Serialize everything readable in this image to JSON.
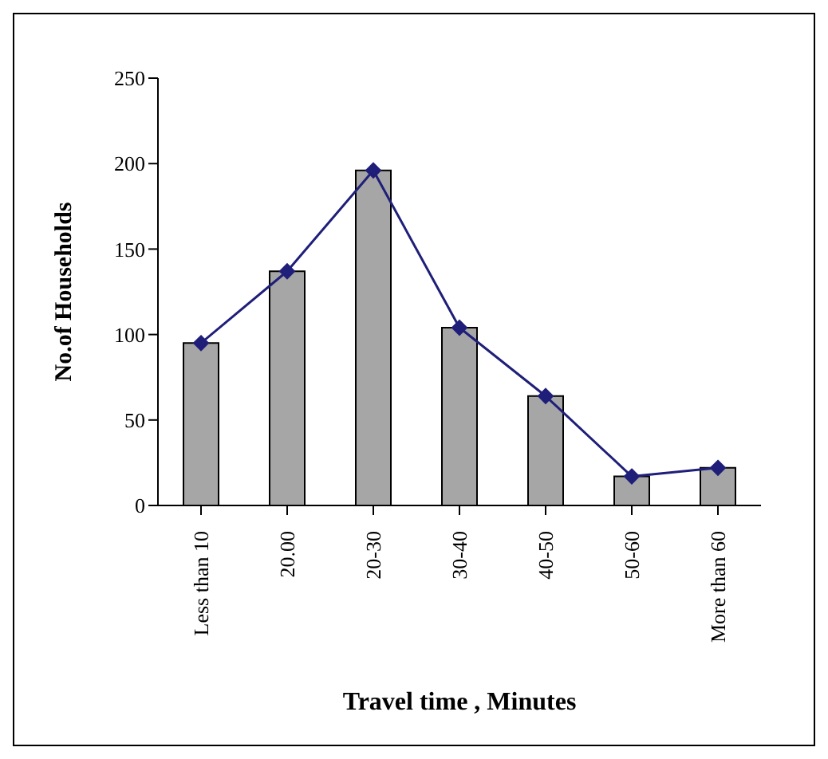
{
  "chart_data": {
    "type": "bar",
    "xlabel": "Travel time , Minutes",
    "ylabel": "No.of Households",
    "categories": [
      "Less than 10",
      "20.00",
      "20-30",
      "30-40",
      "40-50",
      "50-60",
      "More than 60"
    ],
    "series": [
      {
        "color": "#a6a6a6",
        "values": [
          95,
          137,
          196,
          104,
          64,
          17,
          22
        ]
      },
      {
        "type": "line",
        "color": "#1f1f7a",
        "values": [
          95,
          137,
          196,
          104,
          64,
          17,
          22
        ]
      }
    ],
    "ylim": [
      0,
      250
    ],
    "yticks": [
      0,
      50,
      100,
      150,
      200,
      250
    ],
    "grid": false,
    "legend": false,
    "marker": "diamond",
    "line_style": "solid"
  }
}
